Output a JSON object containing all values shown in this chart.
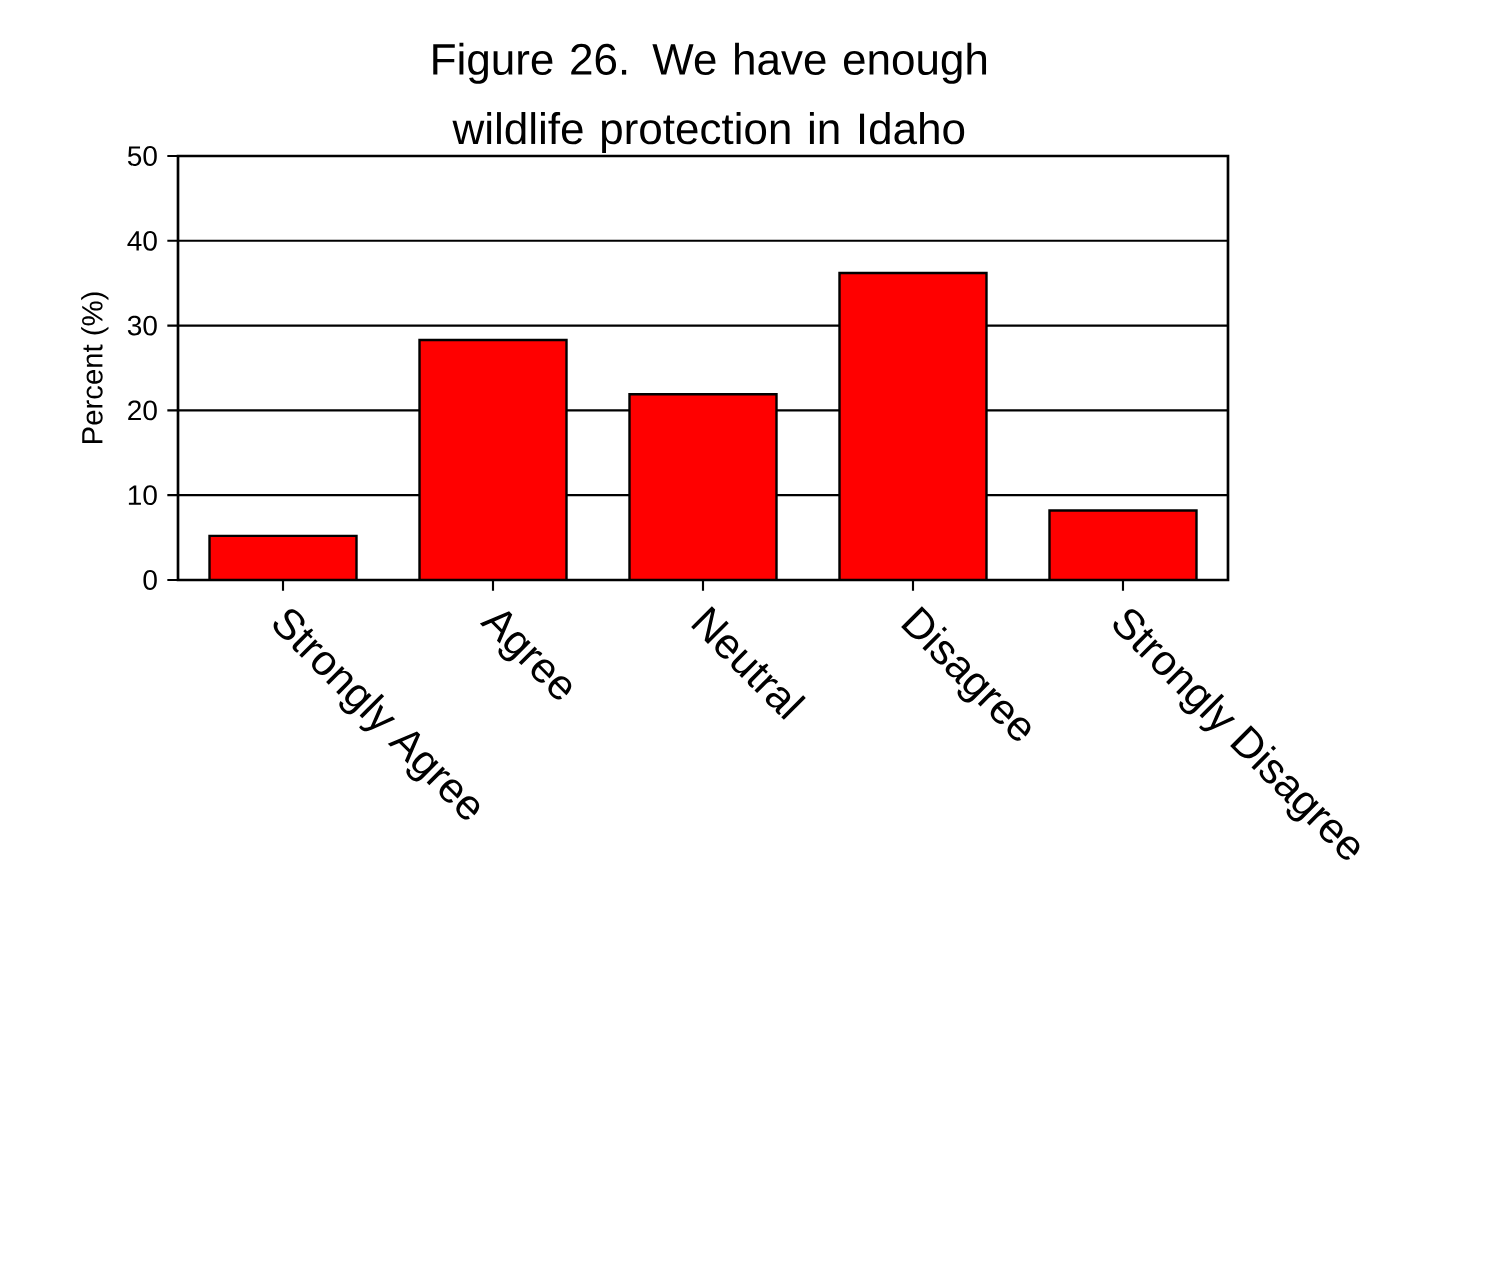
{
  "chart_data": {
    "type": "bar",
    "title": "Figure 26.  We have enough wildlife protection in Idaho",
    "ylabel": "Percent (%)",
    "categories": [
      "Strongly Agree",
      "Agree",
      "Neutral",
      "Disagree",
      "Strongly Disagree"
    ],
    "values": [
      5.2,
      28.3,
      21.9,
      36.2,
      8.2
    ],
    "color": "#ff0000",
    "ylim": [
      0,
      50
    ],
    "yticks": [
      0,
      10,
      20,
      30,
      40,
      50
    ],
    "grid": "y"
  }
}
